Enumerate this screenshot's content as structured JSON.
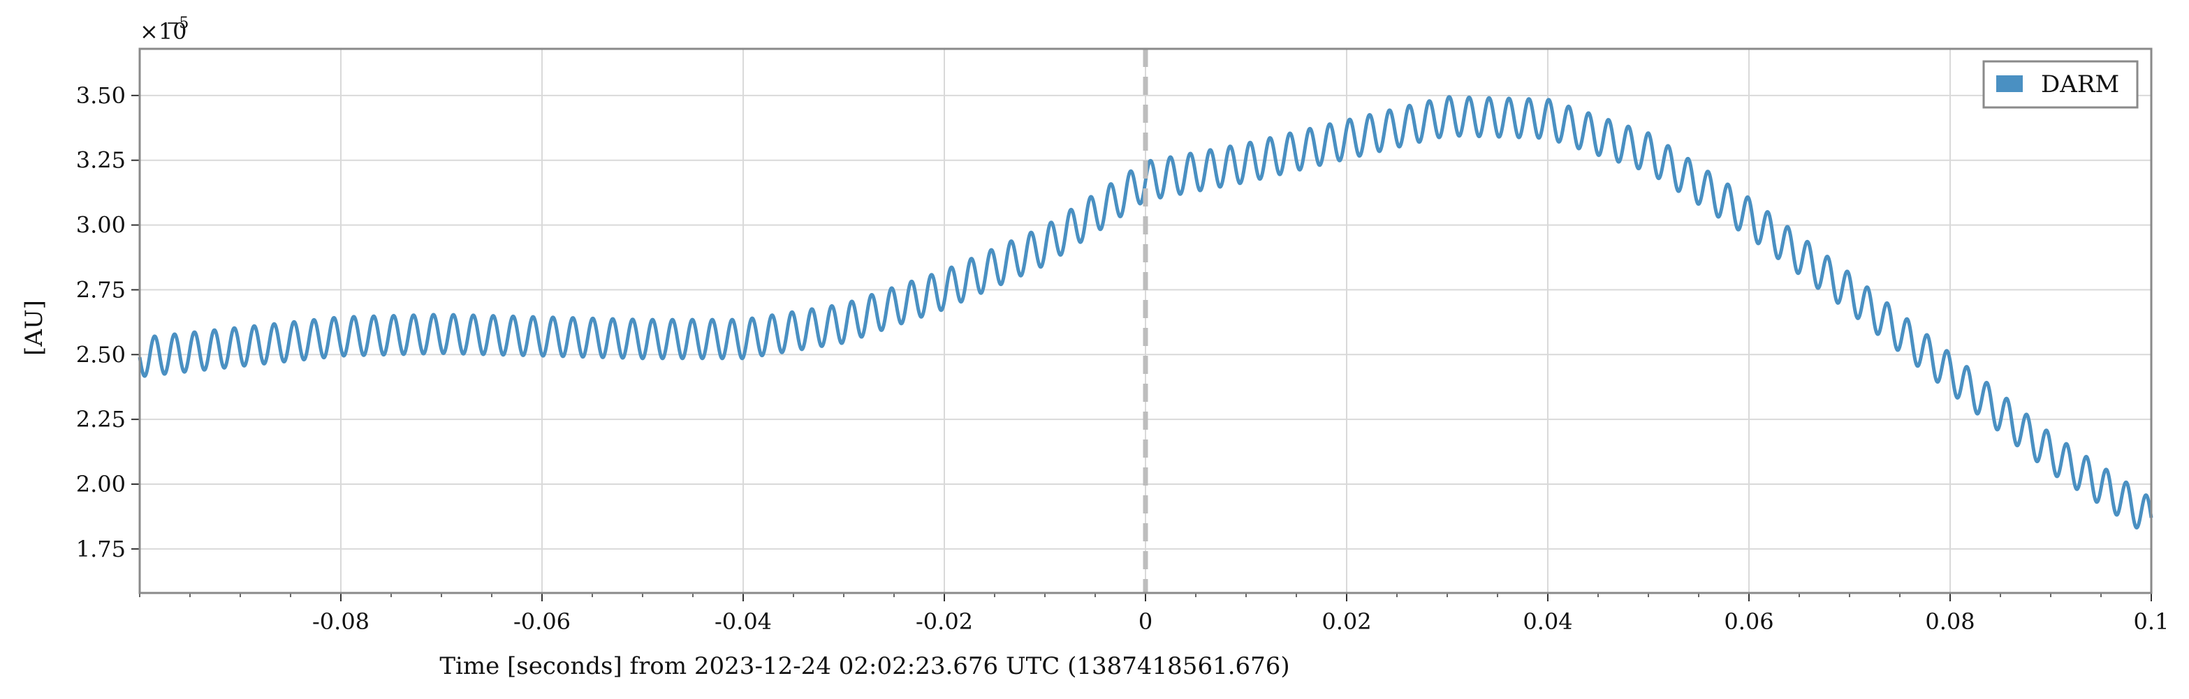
{
  "chart_data": {
    "type": "line",
    "xlabel": "Time [seconds] from 2023-12-24 02:02:23.676 UTC (1387418561.676)",
    "ylabel": "[AU]",
    "y_multiplier": "×10",
    "y_multiplier_exponent": "−5",
    "xlim": [
      -0.1,
      0.1
    ],
    "ylim": [
      1.58,
      3.68
    ],
    "x_ticks": [
      -0.08,
      -0.06,
      -0.04,
      -0.02,
      0,
      0.02,
      0.04,
      0.06,
      0.08,
      0.1
    ],
    "x_tick_labels": [
      "-0.08",
      "-0.06",
      "-0.04",
      "-0.02",
      "0",
      "0.02",
      "0.04",
      "0.06",
      "0.08",
      "0.1"
    ],
    "y_ticks": [
      1.75,
      2.0,
      2.25,
      2.5,
      2.75,
      3.0,
      3.25,
      3.5
    ],
    "y_tick_labels": [
      "1.75",
      "2.00",
      "2.25",
      "2.50",
      "2.75",
      "3.00",
      "3.25",
      "3.50"
    ],
    "grid": true,
    "event_marker_x": 0,
    "legend_position": "top-right",
    "series": [
      {
        "name": "DARM",
        "color": "#4a90c2",
        "envelope_x": [
          -0.1,
          -0.09,
          -0.08,
          -0.07,
          -0.06,
          -0.05,
          -0.04,
          -0.03,
          -0.02,
          -0.01,
          0.0,
          0.01,
          0.02,
          0.03,
          0.04,
          0.05,
          0.06,
          0.07,
          0.08,
          0.09,
          0.1
        ],
        "envelope_mid": [
          2.49,
          2.53,
          2.57,
          2.58,
          2.57,
          2.56,
          2.56,
          2.62,
          2.75,
          2.92,
          3.17,
          3.24,
          3.33,
          3.42,
          3.41,
          3.28,
          3.03,
          2.74,
          2.43,
          2.12,
          1.87
        ],
        "oscillation_amplitude": 0.075,
        "oscillation_frequency_hz": 505
      }
    ]
  }
}
